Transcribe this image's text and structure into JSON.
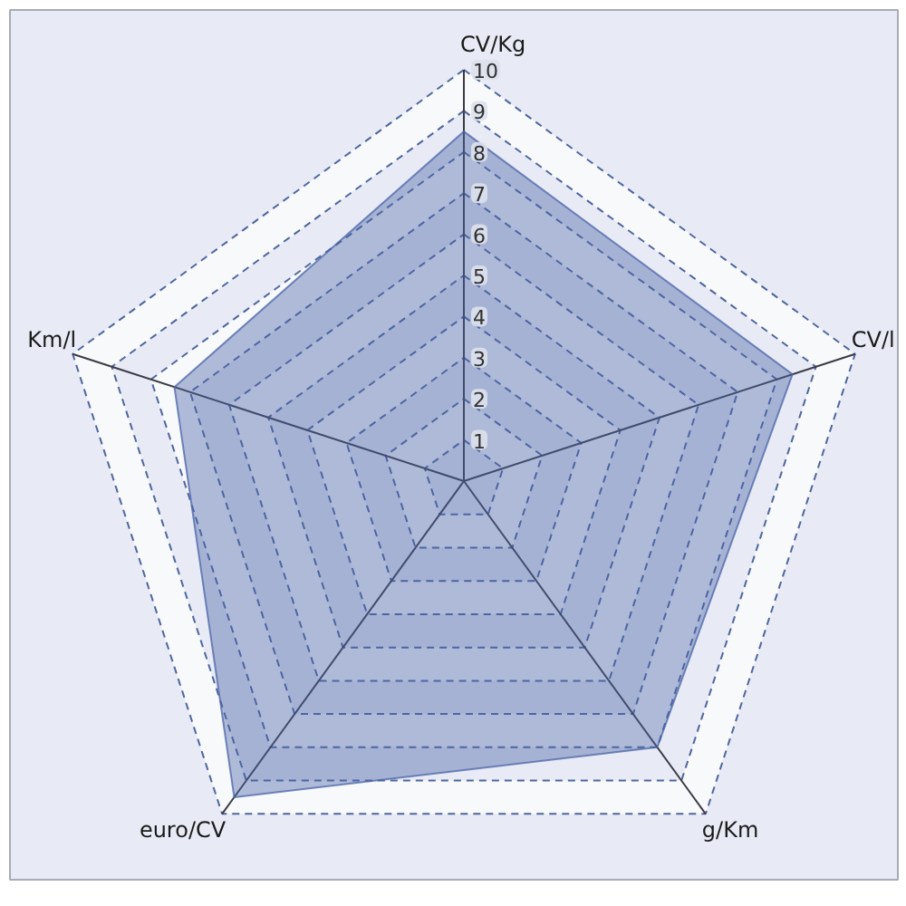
{
  "chart_data": {
    "type": "radar",
    "categories": [
      "CV/Kg",
      "CV/l",
      "g/Km",
      "euro/CV",
      "Km/l"
    ],
    "series": [
      {
        "color": "#4a64a8",
        "values": [
          8.5,
          8.4,
          8.0,
          9.5,
          7.4
        ]
      }
    ],
    "ylim": [
      0,
      10
    ],
    "yticks": [
      1,
      2,
      3,
      4,
      5,
      6,
      7,
      8,
      9,
      10
    ],
    "grid": true
  }
}
